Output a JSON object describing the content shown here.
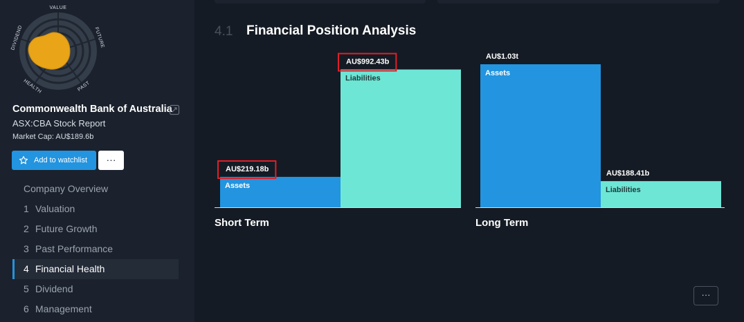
{
  "snowflake": {
    "axes": [
      "VALUE",
      "FUTURE",
      "PAST",
      "HEALTH",
      "DIVIDEND"
    ],
    "fill_color": "#e9a417"
  },
  "company": {
    "name": "Commonwealth Bank of Australia",
    "report": "ASX:CBA Stock Report",
    "market_cap": "Market Cap: AU$189.6b"
  },
  "actions": {
    "watchlist_label": "Add to watchlist",
    "more_label": "···"
  },
  "nav": [
    {
      "num": "",
      "label": "Company Overview",
      "active": false
    },
    {
      "num": "1",
      "label": "Valuation",
      "active": false
    },
    {
      "num": "2",
      "label": "Future Growth",
      "active": false
    },
    {
      "num": "3",
      "label": "Past Performance",
      "active": false
    },
    {
      "num": "4",
      "label": "Financial Health",
      "active": true
    },
    {
      "num": "5",
      "label": "Dividend",
      "active": false
    },
    {
      "num": "6",
      "label": "Management",
      "active": false
    }
  ],
  "section": {
    "number": "4.1",
    "title": "Financial Position Analysis"
  },
  "colors": {
    "assets": "#2394df",
    "liabilities": "#6ee6d6",
    "highlight": "#e0202a"
  },
  "chart_data": {
    "type": "bar",
    "groups": [
      {
        "name": "Short Term",
        "items": [
          {
            "series": "Assets",
            "value": 219.18,
            "label": "AU$219.18b",
            "highlighted": true
          },
          {
            "series": "Liabilities",
            "value": 992.43,
            "label": "AU$992.43b",
            "highlighted": true
          }
        ]
      },
      {
        "name": "Long Term",
        "items": [
          {
            "series": "Assets",
            "value": 1030,
            "label": "AU$1.03t",
            "highlighted": false
          },
          {
            "series": "Liabilities",
            "value": 188.41,
            "label": "AU$188.41b",
            "highlighted": false
          }
        ]
      }
    ],
    "unit": "AU$ billions"
  },
  "footer": {
    "dots_label": "···"
  }
}
